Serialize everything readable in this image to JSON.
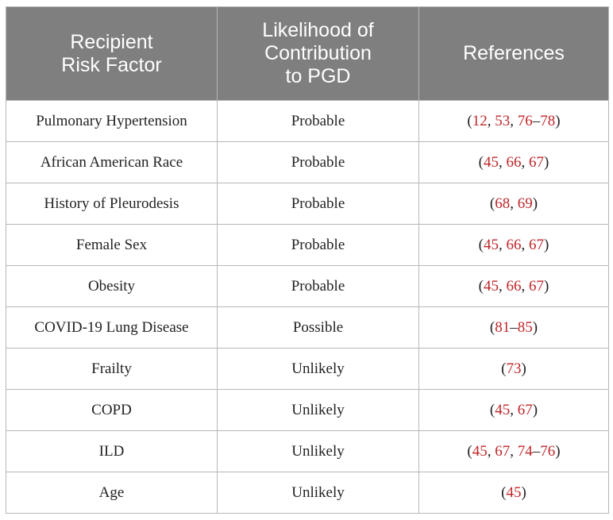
{
  "table": {
    "headers": {
      "col1": [
        "Recipient",
        "Risk Factor"
      ],
      "col2": [
        "Likelihood of",
        "Contribution",
        "to PGD"
      ],
      "col3": [
        "References"
      ]
    },
    "rows": [
      {
        "factor": "Pulmonary Hypertension",
        "likelihood": "Probable",
        "refs": [
          {
            "ref": "12",
            "sep": ", "
          },
          {
            "ref": "53",
            "sep": ", "
          },
          {
            "ref": "76",
            "sep": "–"
          },
          {
            "ref": "78",
            "sep": ""
          }
        ]
      },
      {
        "factor": "African American Race",
        "likelihood": "Probable",
        "refs": [
          {
            "ref": "45",
            "sep": ", "
          },
          {
            "ref": "66",
            "sep": ", "
          },
          {
            "ref": "67",
            "sep": ""
          }
        ]
      },
      {
        "factor": "History of Pleurodesis",
        "likelihood": "Probable",
        "refs": [
          {
            "ref": "68",
            "sep": ", "
          },
          {
            "ref": "69",
            "sep": ""
          }
        ]
      },
      {
        "factor": "Female Sex",
        "likelihood": "Probable",
        "refs": [
          {
            "ref": "45",
            "sep": ", "
          },
          {
            "ref": "66",
            "sep": ", "
          },
          {
            "ref": "67",
            "sep": ""
          }
        ]
      },
      {
        "factor": "Obesity",
        "likelihood": "Probable",
        "refs": [
          {
            "ref": "45",
            "sep": ", "
          },
          {
            "ref": "66",
            "sep": ", "
          },
          {
            "ref": "67",
            "sep": ""
          }
        ]
      },
      {
        "factor": "COVID-19 Lung Disease",
        "likelihood": "Possible",
        "refs": [
          {
            "ref": "81",
            "sep": "–"
          },
          {
            "ref": "85",
            "sep": ""
          }
        ]
      },
      {
        "factor": "Frailty",
        "likelihood": "Unlikely",
        "refs": [
          {
            "ref": "73",
            "sep": ""
          }
        ]
      },
      {
        "factor": "COPD",
        "likelihood": "Unlikely",
        "refs": [
          {
            "ref": "45",
            "sep": ", "
          },
          {
            "ref": "67",
            "sep": ""
          }
        ]
      },
      {
        "factor": "ILD",
        "likelihood": "Unlikely",
        "refs": [
          {
            "ref": "45",
            "sep": ", "
          },
          {
            "ref": "67",
            "sep": ", "
          },
          {
            "ref": "74",
            "sep": "–"
          },
          {
            "ref": "76",
            "sep": ""
          }
        ]
      },
      {
        "factor": "Age",
        "likelihood": "Unlikely",
        "refs": [
          {
            "ref": "45",
            "sep": ""
          }
        ]
      }
    ],
    "colors": {
      "header_bg": "#7f7f7f",
      "header_text": "#ffffff",
      "ref_link": "#c0262a",
      "border": "#b7b7b7"
    }
  }
}
